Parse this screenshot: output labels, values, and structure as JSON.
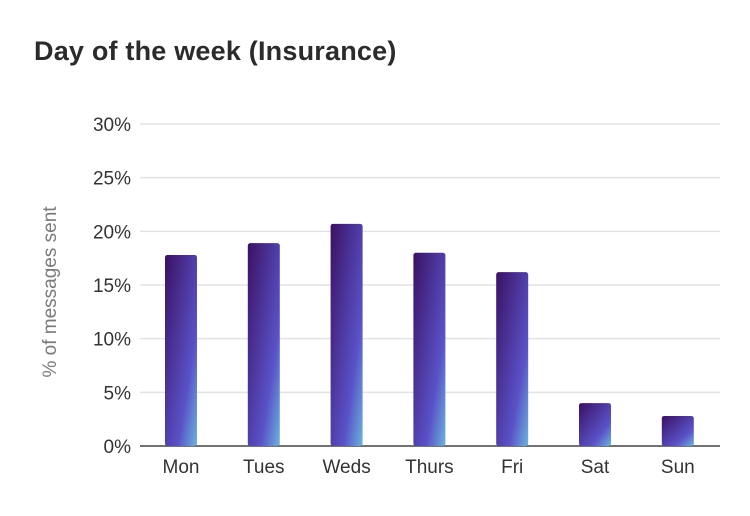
{
  "chart_data": {
    "type": "bar",
    "title": "Day of the week (Insurance)",
    "xlabel": "",
    "ylabel": "% of messages sent",
    "categories": [
      "Mon",
      "Tues",
      "Weds",
      "Thurs",
      "Fri",
      "Sat",
      "Sun"
    ],
    "values": [
      17.8,
      18.9,
      20.7,
      18.0,
      16.2,
      4.0,
      2.8
    ],
    "ylim": [
      0,
      30
    ],
    "yticks": [
      0,
      5,
      10,
      15,
      20,
      25,
      30
    ],
    "ytick_labels": [
      "0%",
      "5%",
      "10%",
      "15%",
      "20%",
      "25%",
      "30%"
    ],
    "grid": true,
    "legend": "none",
    "colors": {
      "bar_top": "#3a1163",
      "bar_mid": "#5a52c8",
      "bar_bottom": "#6ab4dc",
      "grid": "#e3e3e3",
      "baseline": "#444444"
    }
  }
}
